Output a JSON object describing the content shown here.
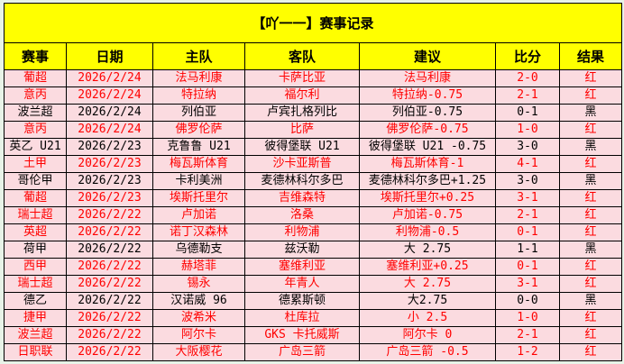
{
  "title": "【吖一一】赛事记录",
  "headers": [
    "赛事",
    "日期",
    "主队",
    "客队",
    "建议",
    "比分",
    "结果"
  ],
  "colors": {
    "header_bg": "#ffff00",
    "row_bg": "#fbdbe0",
    "win_text": "#ff0000",
    "loss_text": "#000000"
  },
  "rows": [
    [
      "葡超",
      "2026/2/24",
      "法马利康",
      "卡萨比亚",
      "法马利康",
      "2-0",
      "红"
    ],
    [
      "意丙",
      "2026/2/24",
      "特拉纳",
      "福尔利",
      "特拉纳-0.75",
      "2-1",
      "红"
    ],
    [
      "波兰超",
      "2026/2/24",
      "列伯亚",
      "卢宾扎格列比",
      "列伯亚-0.75",
      "0-1",
      "黑"
    ],
    [
      "意丙",
      "2026/2/24",
      "佛罗伦萨",
      "比萨",
      "佛罗伦萨-0.75",
      "1-0",
      "红"
    ],
    [
      "英乙 U21",
      "2026/2/23",
      "克鲁鲁 U21",
      "彼得堡联 U21",
      "彼得堡联 U21 -0.75",
      "3-0",
      "黑"
    ],
    [
      "土甲",
      "2026/2/23",
      "梅瓦斯体育",
      "沙卡亚斯普",
      "梅瓦斯体育-1",
      "4-1",
      "红"
    ],
    [
      "哥伦甲",
      "2026/2/23",
      "卡利美洲",
      "麦德林科尔多巴",
      "麦德林科尔多巴+1.25",
      "3-0",
      "黑"
    ],
    [
      "葡超",
      "2026/2/23",
      "埃斯托里尔",
      "吉维森特",
      "埃斯托里尔+0.25",
      "3-1",
      "红"
    ],
    [
      "瑞士超",
      "2026/2/22",
      "卢加诺",
      "洛桑",
      "卢加诺-0.75",
      "2-1",
      "红"
    ],
    [
      "英超",
      "2026/2/22",
      "诺丁汉森林",
      "利物浦",
      "利物浦-0.5",
      "0-1",
      "红"
    ],
    [
      "荷甲",
      "2026/2/22",
      "乌德勒支",
      "兹沃勒",
      "大 2.75",
      "1-1",
      "黑"
    ],
    [
      "西甲",
      "2026/2/22",
      "赫塔菲",
      "塞维利亚",
      "塞维利亚+0.25",
      "0-1",
      "红"
    ],
    [
      "瑞士超",
      "2026/2/22",
      "锡永",
      "年青人",
      "大 2.75",
      "3-1",
      "红"
    ],
    [
      "德乙",
      "2026/2/22",
      "汉诺威 96",
      "德累斯顿",
      "大2.75",
      "0-0",
      "黑"
    ],
    [
      "捷甲",
      "2026/2/22",
      "波希米",
      "杜库拉",
      "小 2.5",
      "1-0",
      "红"
    ],
    [
      "波兰超",
      "2026/2/22",
      "阿尔卡",
      "GKS 卡托威斯",
      "阿尔卡 0",
      "2-1",
      "红"
    ],
    [
      "日职联",
      "2026/2/22",
      "大阪樱花",
      "广岛三箭",
      "广岛三箭 -0.5",
      "1-2",
      "红"
    ]
  ]
}
